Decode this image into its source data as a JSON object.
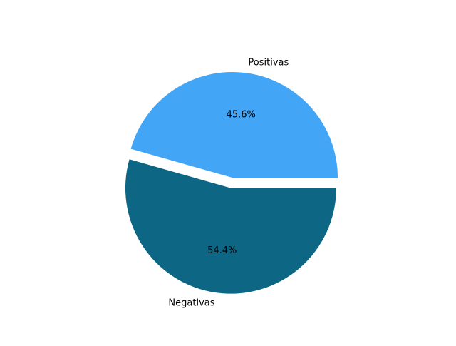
{
  "chart_data": {
    "type": "pie",
    "slices": [
      {
        "label": "Positivas",
        "value": 45.6,
        "percent_label": "45.6%",
        "color": "#42a5f5",
        "explode": false
      },
      {
        "label": "Negativas",
        "value": 54.4,
        "percent_label": "54.4%",
        "color": "#0d6784",
        "explode": true
      }
    ],
    "start_angle_deg": 0,
    "direction": "counterclockwise",
    "autopct": true,
    "legend": false
  }
}
